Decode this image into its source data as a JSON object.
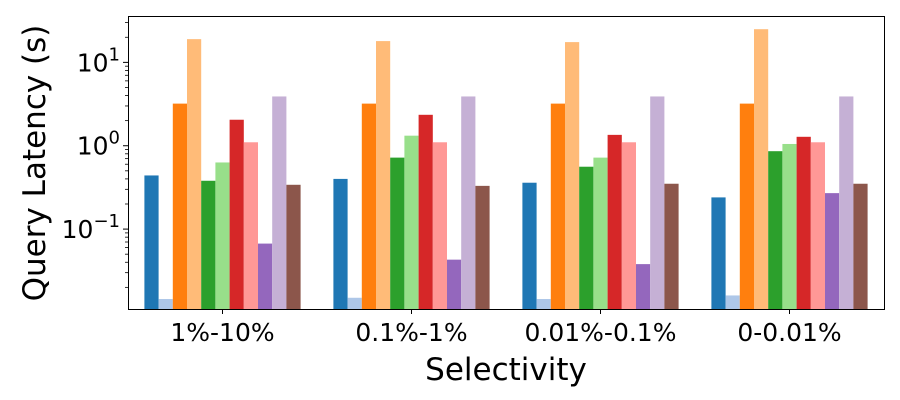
{
  "chart_data": {
    "type": "bar",
    "title": "",
    "xlabel": "Selectivity",
    "ylabel": "Query Latency (s)",
    "yscale": "log",
    "ylim": [
      0.011,
      36
    ],
    "yticks": [
      {
        "value": 0.1,
        "base": "10",
        "exp": "−1"
      },
      {
        "value": 1,
        "base": "10",
        "exp": "0"
      },
      {
        "value": 10,
        "base": "10",
        "exp": "1"
      }
    ],
    "grid": false,
    "legend": "none",
    "categories": [
      "1%-10%",
      "0.1%-1%",
      "0.01%-0.1%",
      "0-0.01%"
    ],
    "series": [
      {
        "color": "#1f77b4",
        "values": [
          0.44,
          0.4,
          0.36,
          0.24
        ]
      },
      {
        "color": "#aec7e8",
        "values": [
          0.0145,
          0.015,
          0.0145,
          0.016
        ]
      },
      {
        "color": "#ff7f0e",
        "values": [
          3.2,
          3.2,
          3.2,
          3.2
        ]
      },
      {
        "color": "#ffbb78",
        "values": [
          19,
          18,
          17.5,
          25
        ]
      },
      {
        "color": "#2ca02c",
        "values": [
          0.38,
          0.72,
          0.56,
          0.86
        ]
      },
      {
        "color": "#98df8a",
        "values": [
          0.63,
          1.32,
          0.72,
          1.05
        ]
      },
      {
        "color": "#d62728",
        "values": [
          2.05,
          2.35,
          1.35,
          1.28
        ]
      },
      {
        "color": "#ff9896",
        "values": [
          1.1,
          1.1,
          1.1,
          1.1
        ]
      },
      {
        "color": "#9467bd",
        "values": [
          0.067,
          0.043,
          0.038,
          0.27
        ]
      },
      {
        "color": "#c5b0d5",
        "values": [
          3.9,
          3.9,
          3.9,
          3.9
        ]
      },
      {
        "color": "#8c564b",
        "values": [
          0.34,
          0.33,
          0.35,
          0.35
        ]
      }
    ]
  }
}
